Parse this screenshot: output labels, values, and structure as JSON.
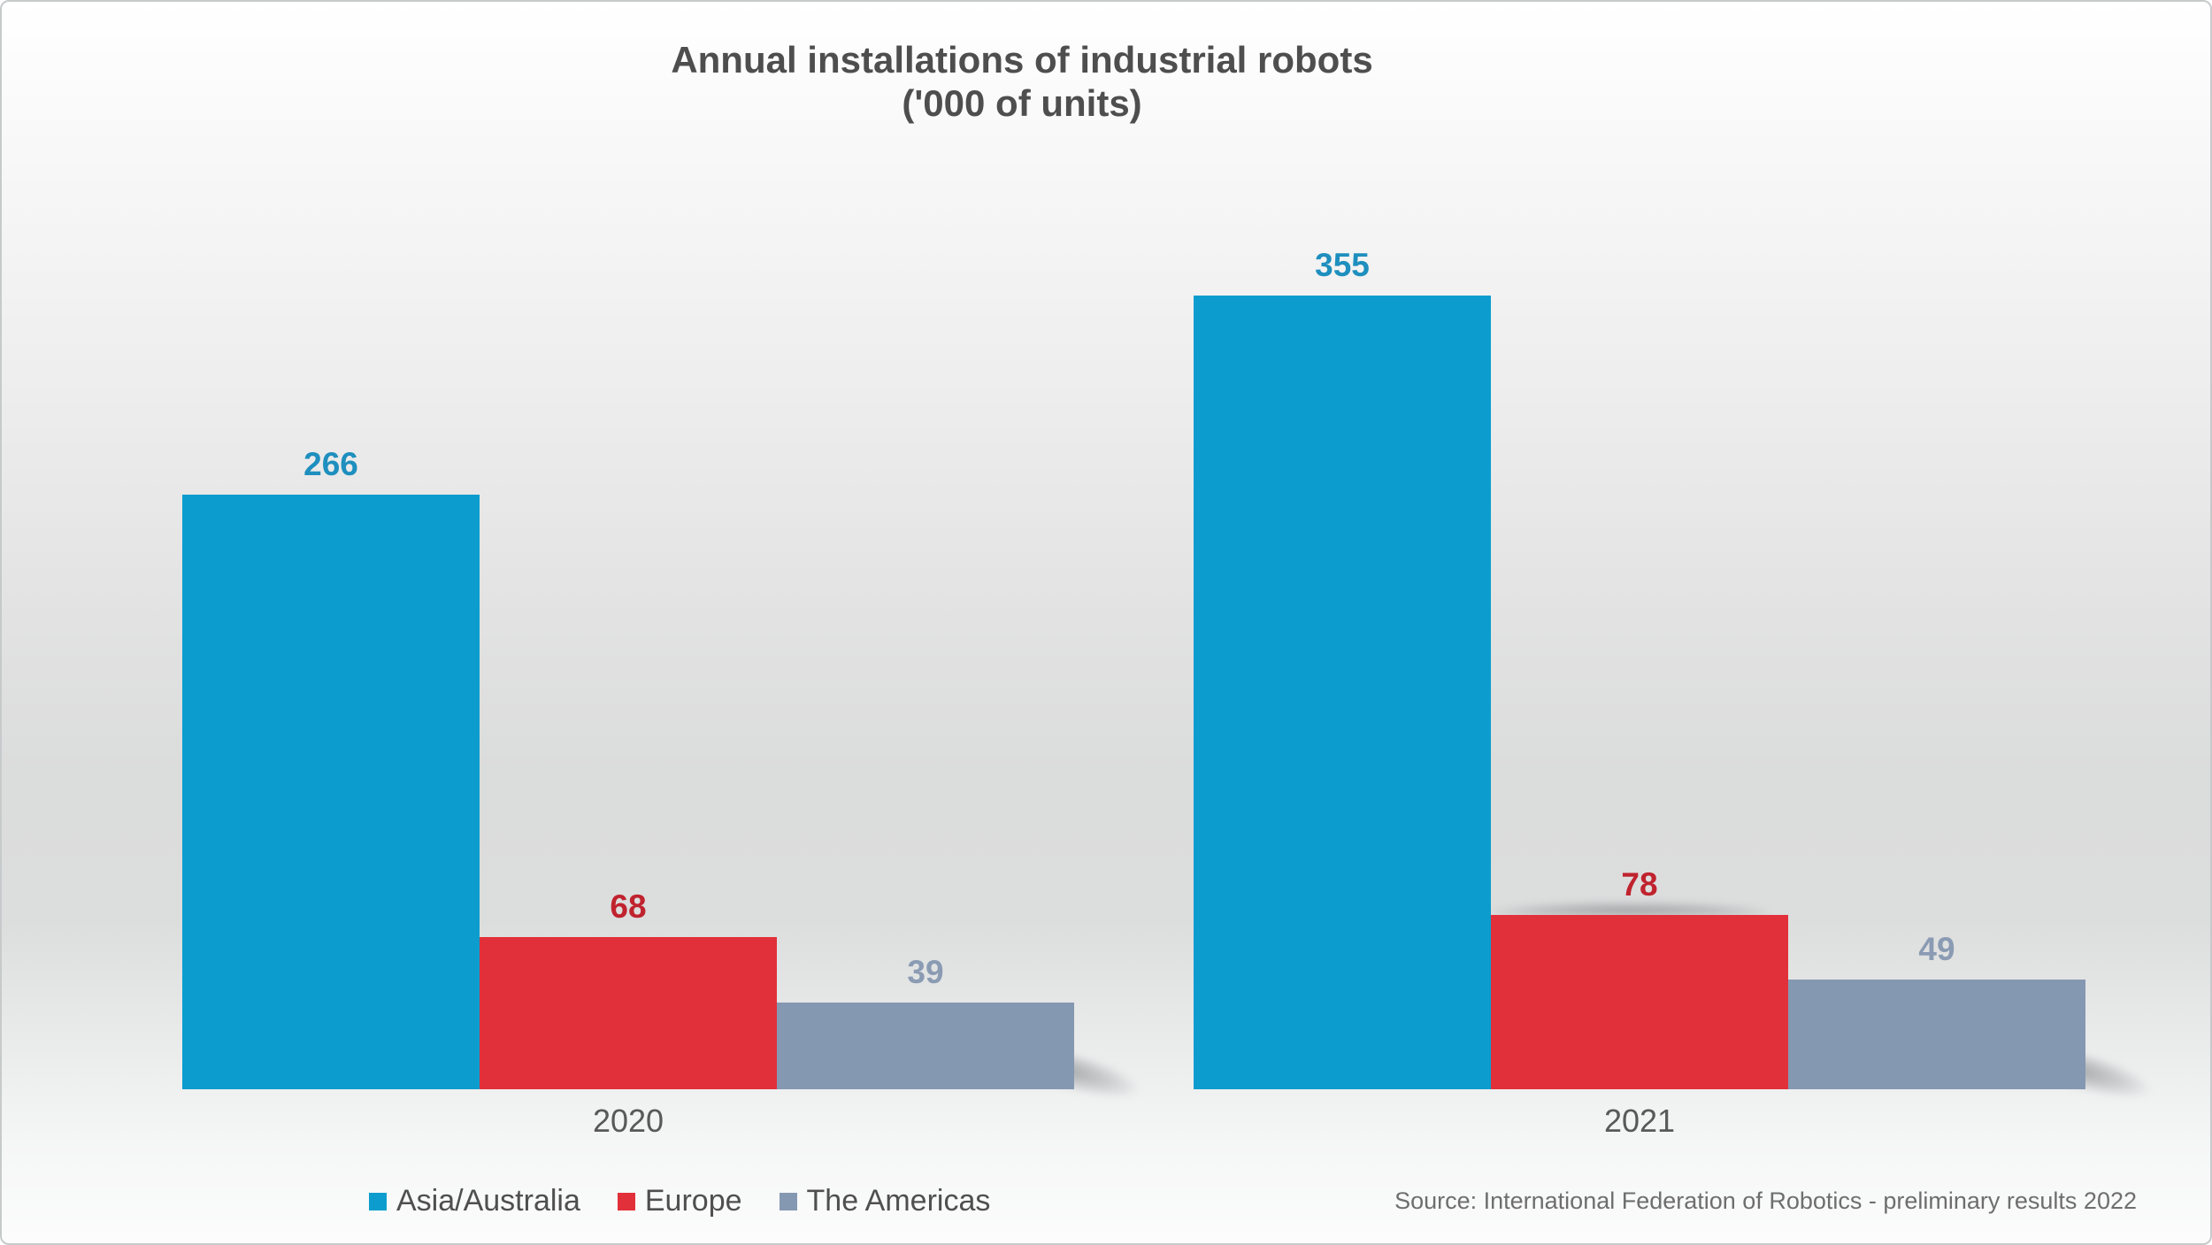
{
  "title": {
    "line1": "Annual installations of industrial robots",
    "line2": "('000 of units)"
  },
  "source_note": "Source: International Federation of Robotics - preliminary results 2022",
  "chart_data": {
    "type": "bar",
    "title": "Annual installations of industrial robots ('000 of units)",
    "categories": [
      "2020",
      "2021"
    ],
    "series": [
      {
        "name": "Asia/Australia",
        "values": [
          266,
          355
        ],
        "color": "#0c9dce",
        "label_color": "#1e8fbe"
      },
      {
        "name": "Europe",
        "values": [
          68,
          78
        ],
        "color": "#e2303a",
        "label_color": "#c0232e"
      },
      {
        "name": "The Americas",
        "values": [
          39,
          49
        ],
        "color": "#8598b2",
        "label_color": "#8a9bb3"
      }
    ],
    "value_axis_visible": false,
    "gridlines": false,
    "data_labels": true,
    "legend_position": "bottom-left",
    "background_colors": {
      "top": "#ffffff",
      "middle": "#dbdcdc",
      "bottom": "#fcfcfc"
    },
    "text_color": "#595959"
  }
}
